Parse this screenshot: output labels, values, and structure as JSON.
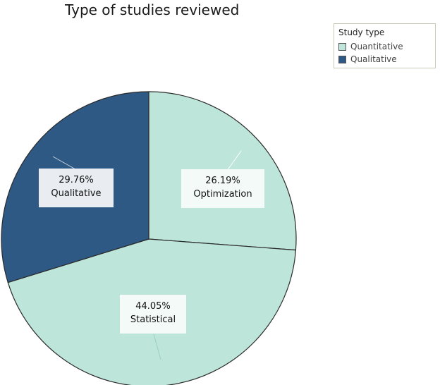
{
  "chart_data": {
    "type": "pie",
    "title": "Type of studies reviewed",
    "legend": {
      "title": "Study type",
      "placement": "top-right",
      "items": [
        {
          "label": "Quantitative",
          "color": "#bde5da"
        },
        {
          "label": "Qualitative",
          "color": "#2e5985"
        }
      ]
    },
    "slices": [
      {
        "label": "Optimization",
        "value": 26.19,
        "display": "26.19%",
        "group": "Quantitative",
        "color": "#bde5da"
      },
      {
        "label": "Statistical",
        "value": 44.05,
        "display": "44.05%",
        "group": "Quantitative",
        "color": "#bde5da"
      },
      {
        "label": "Qualitative",
        "value": 29.76,
        "display": "29.76%",
        "group": "Qualitative",
        "color": "#2e5985"
      }
    ],
    "start_angle": "12 o'clock",
    "direction": "clockwise"
  }
}
